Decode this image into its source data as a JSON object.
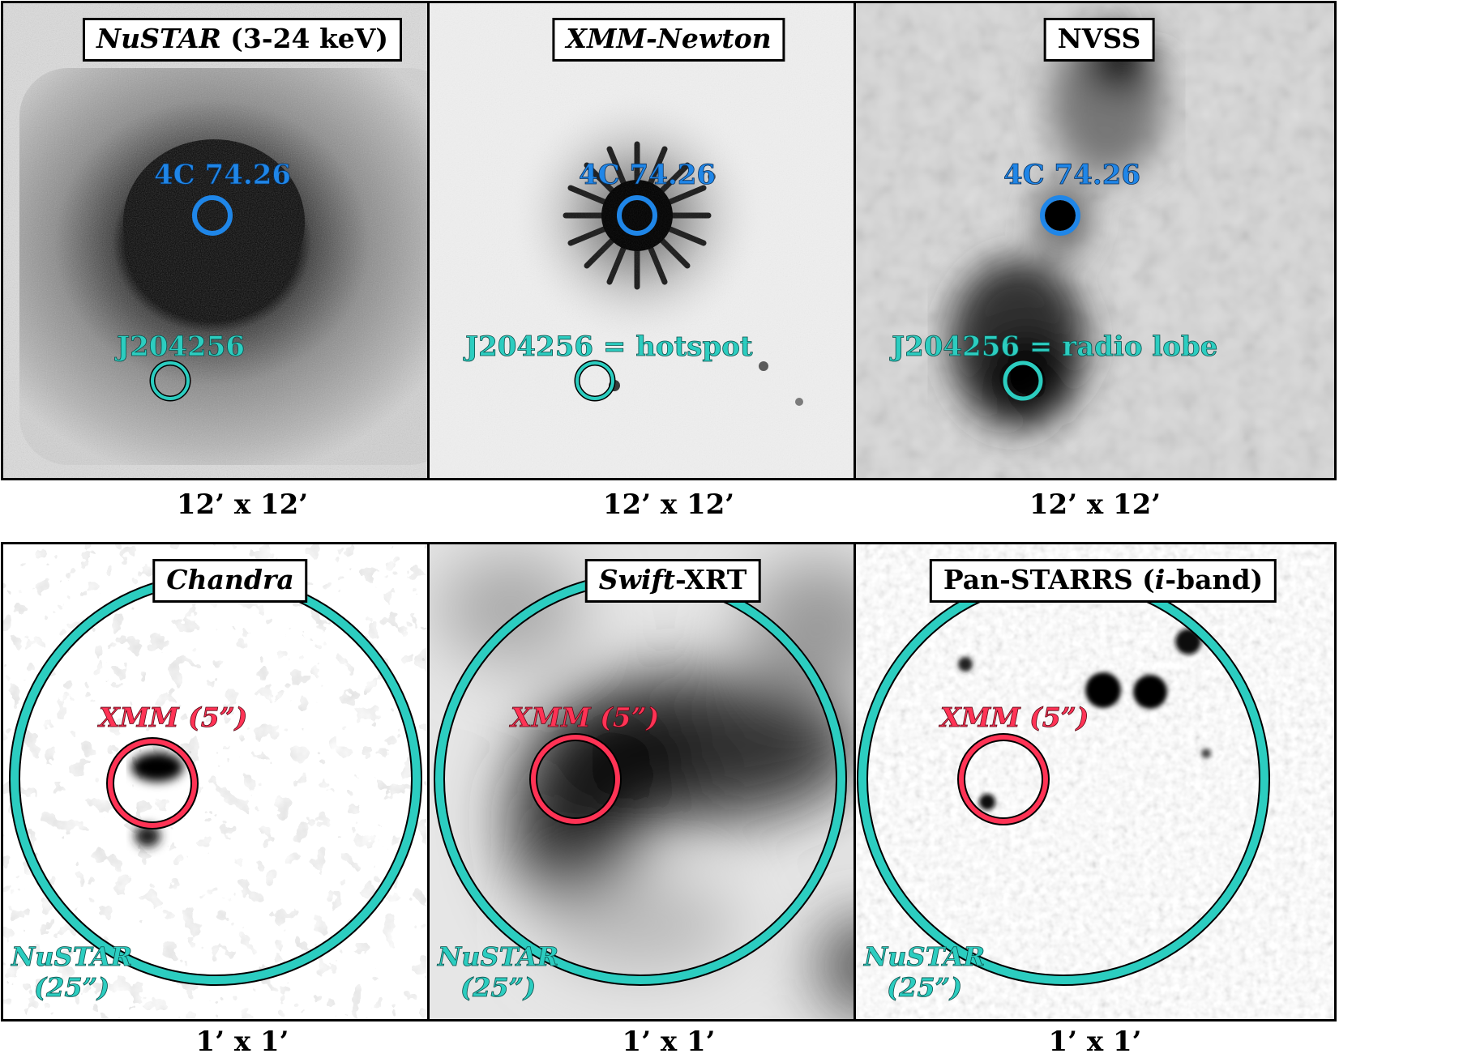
{
  "colors": {
    "agn_circle": "#1f86e8",
    "hotspot_circle": "#2ccdc0",
    "xmm_circle": "#ff3355",
    "nustar_circle": "#2ccdc0"
  },
  "panels": [
    {
      "title_main": "NuSTAR",
      "title_rest": " (3-24 keV)",
      "caption": "12’ x 12’",
      "agn_label": "4C 74.26",
      "src_label": "J204256"
    },
    {
      "title_main": "XMM-Newton",
      "title_rest": "",
      "caption": "12’ x 12’",
      "agn_label": "4C 74.26",
      "src_label": "J204256 = hotspot"
    },
    {
      "title_main": "NVSS",
      "title_rest": "",
      "caption": "12’ x 12’",
      "agn_label": "4C 74.26",
      "src_label": "J204256 = radio lobe"
    },
    {
      "title_main": "Chandra",
      "title_rest": "",
      "caption": "1’ x 1’",
      "xmm_label": "XMM (5”)",
      "nustar_label_1": "NuSTAR",
      "nustar_label_2": "(25”)"
    },
    {
      "title_main": "Swift",
      "title_rest": "-XRT",
      "caption": "1’ x 1’",
      "xmm_label": "XMM (5”)",
      "nustar_label_1": "NuSTAR",
      "nustar_label_2": "(25”)"
    },
    {
      "title_main_a": "Pan-STARRS (",
      "title_main_b": "i",
      "title_main_c": "-band)",
      "caption": "1’ x 1’",
      "xmm_label": "XMM (5”)",
      "nustar_label_1": "NuSTAR",
      "nustar_label_2": "(25”)"
    }
  ]
}
